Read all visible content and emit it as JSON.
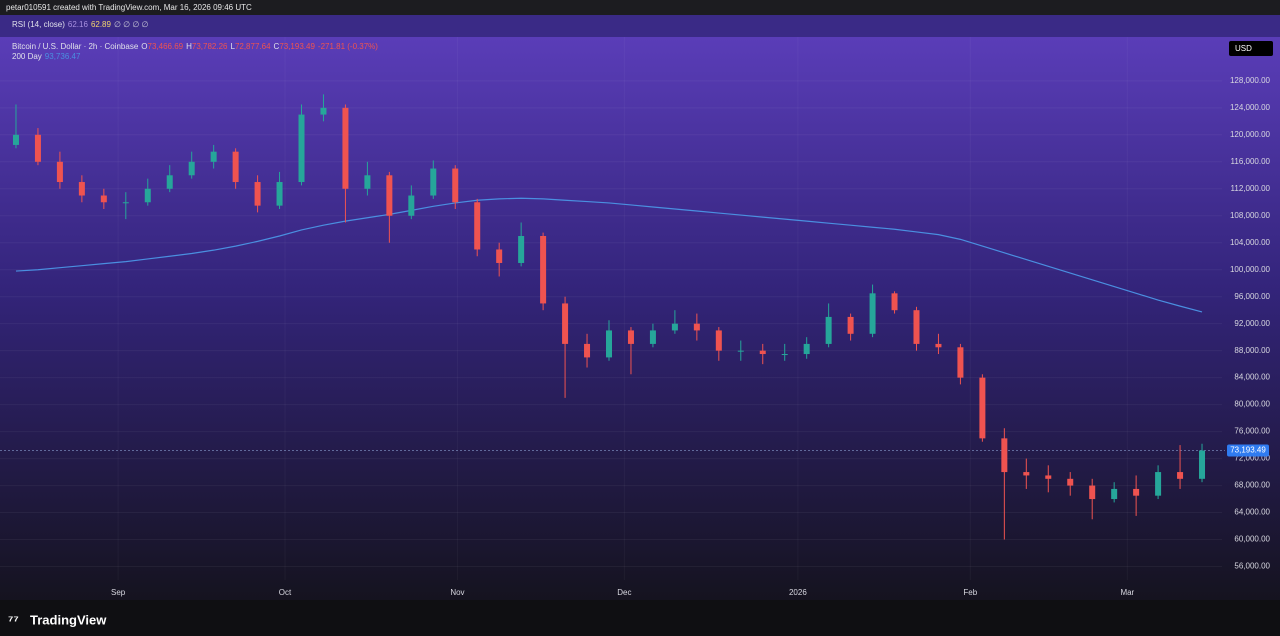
{
  "header": "petar010591 created with TradingView.com, Mar 16, 2026 09:46 UTC",
  "rsi": {
    "label": "RSI (14, close)",
    "values": [
      "62.16",
      "62.89"
    ],
    "empty": "∅ ∅ ∅ ∅"
  },
  "footer": "TradingView",
  "chart_data": {
    "type": "candlestick",
    "symbol": "Bitcoin / U.S. Dollar · 2h · Coinbase",
    "legend_ohlc": [
      {
        "key": "O",
        "value": "73,466.69"
      },
      {
        "key": "H",
        "value": "73,782.26"
      },
      {
        "key": "L",
        "value": "72,877.64"
      },
      {
        "key": "C",
        "value": "73,193.49"
      }
    ],
    "change": "-271.81 (-0.37%)",
    "currency": "USD",
    "up_color": "#26a69a",
    "down_color": "#ef5350",
    "open": [
      118500,
      120000,
      116000,
      113000,
      111000,
      110000,
      110000,
      112000,
      114000,
      116000,
      117500,
      113000,
      109500,
      113000,
      123000,
      124000,
      112000,
      114000,
      108000,
      111000,
      115000,
      110000,
      103000,
      101000,
      105000,
      95000,
      89000,
      87000,
      91000,
      89000,
      91000,
      92000,
      91000,
      88000,
      88000,
      87500,
      87500,
      89000,
      93000,
      90500,
      96500,
      94000,
      89000,
      88500,
      84000,
      75000,
      70000,
      69500,
      69000,
      68000,
      66000,
      67500,
      66500,
      70000,
      69000
    ],
    "high": [
      124500,
      121000,
      117500,
      114000,
      112000,
      111500,
      113500,
      115500,
      117500,
      118500,
      118000,
      114000,
      114500,
      124500,
      126000,
      124500,
      116000,
      114500,
      112500,
      116200,
      115500,
      110500,
      104000,
      107000,
      105500,
      96000,
      90500,
      92500,
      91500,
      92000,
      94000,
      93500,
      91500,
      89500,
      89000,
      89000,
      90000,
      95000,
      93500,
      97800,
      96800,
      94500,
      90500,
      89000,
      84500,
      76500,
      72000,
      71000,
      70000,
      69000,
      68500,
      69500,
      71000,
      74000,
      74200
    ],
    "low": [
      118000,
      115500,
      112000,
      110000,
      109000,
      107500,
      109500,
      111500,
      113500,
      115000,
      112000,
      108500,
      109000,
      112500,
      122000,
      107000,
      111000,
      104000,
      107500,
      110500,
      109000,
      102000,
      99000,
      100500,
      94000,
      81000,
      85500,
      86500,
      84500,
      88500,
      90500,
      89500,
      86500,
      86500,
      86000,
      86500,
      86800,
      88500,
      89500,
      90000,
      93500,
      88000,
      87500,
      83000,
      74500,
      60000,
      67500,
      67000,
      66500,
      63000,
      65500,
      63500,
      66000,
      67500,
      68500
    ],
    "close": [
      120000,
      116000,
      113000,
      111000,
      110000,
      110000,
      112000,
      114000,
      116000,
      117500,
      113000,
      109500,
      113000,
      123000,
      124000,
      112000,
      114000,
      108000,
      111000,
      115000,
      110000,
      103000,
      101000,
      105000,
      95000,
      89000,
      87000,
      91000,
      89000,
      91000,
      92000,
      91000,
      88000,
      88000,
      87500,
      87500,
      89000,
      93000,
      90500,
      96500,
      94000,
      89000,
      88500,
      84000,
      75000,
      70000,
      69500,
      69000,
      68000,
      66000,
      67500,
      66500,
      70000,
      69000,
      73193.49
    ],
    "series": [
      {
        "name": "200 Day",
        "color": "#4a8fe0",
        "last_label": "93,736.47",
        "values": [
          99800,
          100000,
          100300,
          100600,
          100900,
          101200,
          101600,
          102000,
          102400,
          102900,
          103500,
          104200,
          105000,
          105900,
          106600,
          107200,
          107700,
          108200,
          108800,
          109400,
          109900,
          110300,
          110500,
          110600,
          110500,
          110300,
          110100,
          109900,
          109600,
          109300,
          109000,
          108700,
          108400,
          108100,
          107800,
          107500,
          107200,
          106900,
          106600,
          106300,
          106000,
          105600,
          105200,
          104500,
          103500,
          102500,
          101500,
          100500,
          99500,
          98500,
          97500,
          96500,
          95500,
          94600,
          93736.47
        ]
      }
    ],
    "last_price": {
      "value": 73193.49,
      "label": "73,193.49"
    },
    "ylim": [
      54000,
      134500
    ],
    "yticks": [
      {
        "value": 56000,
        "label": "56,000.00"
      },
      {
        "value": 60000,
        "label": "60,000.00"
      },
      {
        "value": 64000,
        "label": "64,000.00"
      },
      {
        "value": 68000,
        "label": "68,000.00"
      },
      {
        "value": 72000,
        "label": "72,000.00"
      },
      {
        "value": 76000,
        "label": "76,000.00"
      },
      {
        "value": 80000,
        "label": "80,000.00"
      },
      {
        "value": 84000,
        "label": "84,000.00"
      },
      {
        "value": 88000,
        "label": "88,000.00"
      },
      {
        "value": 92000,
        "label": "92,000.00"
      },
      {
        "value": 96000,
        "label": "96,000.00"
      },
      {
        "value": 100000,
        "label": "100,000.00"
      },
      {
        "value": 104000,
        "label": "104,000.00"
      },
      {
        "value": 108000,
        "label": "108,000.00"
      },
      {
        "value": 112000,
        "label": "112,000.00"
      },
      {
        "value": 116000,
        "label": "116,000.00"
      },
      {
        "value": 120000,
        "label": "120,000.00"
      },
      {
        "value": 124000,
        "label": "124,000.00"
      },
      {
        "value": 128000,
        "label": "128,000.00"
      }
    ],
    "xlim": [
      0,
      55
    ],
    "xticks": [
      {
        "value": 5.15,
        "label": "Sep"
      },
      {
        "value": 12.75,
        "label": "Oct"
      },
      {
        "value": 20.6,
        "label": "Nov"
      },
      {
        "value": 28.2,
        "label": "Dec"
      },
      {
        "value": 36.1,
        "label": "2026"
      },
      {
        "value": 43.95,
        "label": "Feb"
      },
      {
        "value": 51.1,
        "label": "Mar"
      }
    ]
  }
}
